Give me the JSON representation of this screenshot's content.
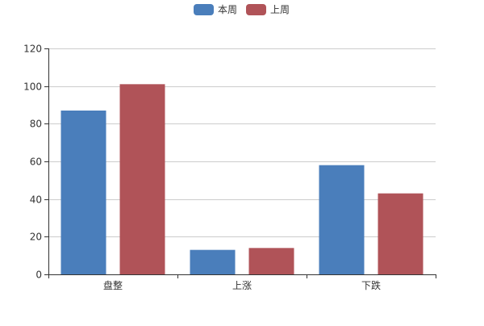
{
  "colors": {
    "series_0": "#4a7ebb",
    "series_1": "#b05358",
    "axis": "#333333",
    "grid": "#cccccc",
    "text": "#333333"
  },
  "chart_data": {
    "type": "bar",
    "categories": [
      "盘整",
      "上涨",
      "下跌"
    ],
    "series": [
      {
        "name": "本周",
        "values": [
          87,
          13,
          58
        ]
      },
      {
        "name": "上周",
        "values": [
          101,
          14,
          43
        ]
      }
    ],
    "ylim": [
      0,
      120
    ],
    "yticks": [
      0,
      20,
      40,
      60,
      80,
      100,
      120
    ],
    "grid": true,
    "legend": "top-center",
    "title": "",
    "xlabel": "",
    "ylabel": ""
  }
}
